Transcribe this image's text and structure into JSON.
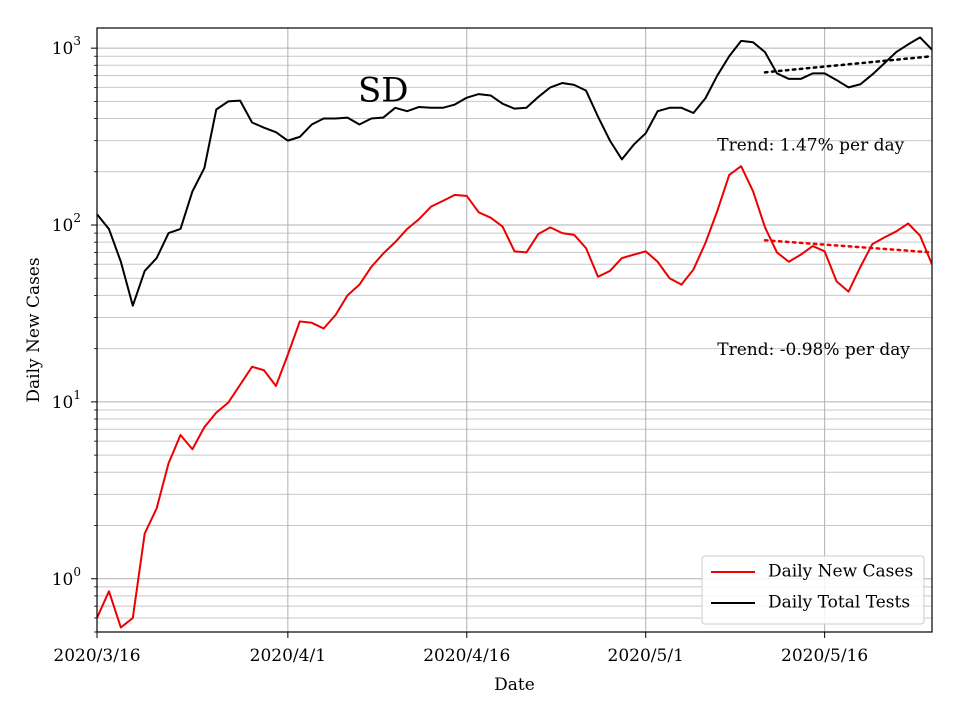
{
  "chart_data": {
    "type": "line",
    "title": "SD",
    "xlabel": "Date",
    "ylabel": "Daily New Cases",
    "yscale": "log",
    "ylim": [
      0.5,
      1300
    ],
    "xlim": [
      "2020-03-16",
      "2020-05-25"
    ],
    "grid": "major and minor (y), major (x)",
    "legend_position": "lower-right",
    "x_ticks": [
      {
        "date": "2020-03-16",
        "label": "2020/3/16"
      },
      {
        "date": "2020-04-01",
        "label": "2020/4/1"
      },
      {
        "date": "2020-04-16",
        "label": "2020/4/16"
      },
      {
        "date": "2020-05-01",
        "label": "2020/5/1"
      },
      {
        "date": "2020-05-16",
        "label": "2020/5/16"
      }
    ],
    "y_ticks": [
      {
        "value": 1,
        "base": "10",
        "exp": "0"
      },
      {
        "value": 10,
        "base": "10",
        "exp": "1"
      },
      {
        "value": 100,
        "base": "10",
        "exp": "2"
      },
      {
        "value": 1000,
        "base": "10",
        "exp": "3"
      }
    ],
    "x": [
      "2020-03-16",
      "2020-03-17",
      "2020-03-18",
      "2020-03-19",
      "2020-03-20",
      "2020-03-21",
      "2020-03-22",
      "2020-03-23",
      "2020-03-24",
      "2020-03-25",
      "2020-03-26",
      "2020-03-27",
      "2020-03-28",
      "2020-03-29",
      "2020-03-30",
      "2020-03-31",
      "2020-04-01",
      "2020-04-02",
      "2020-04-03",
      "2020-04-04",
      "2020-04-05",
      "2020-04-06",
      "2020-04-07",
      "2020-04-08",
      "2020-04-09",
      "2020-04-10",
      "2020-04-11",
      "2020-04-12",
      "2020-04-13",
      "2020-04-14",
      "2020-04-15",
      "2020-04-16",
      "2020-04-17",
      "2020-04-18",
      "2020-04-19",
      "2020-04-20",
      "2020-04-21",
      "2020-04-22",
      "2020-04-23",
      "2020-04-24",
      "2020-04-25",
      "2020-04-26",
      "2020-04-27",
      "2020-04-28",
      "2020-04-29",
      "2020-04-30",
      "2020-05-01",
      "2020-05-02",
      "2020-05-03",
      "2020-05-04",
      "2020-05-05",
      "2020-05-06",
      "2020-05-07",
      "2020-05-08",
      "2020-05-09",
      "2020-05-10",
      "2020-05-11",
      "2020-05-12",
      "2020-05-13",
      "2020-05-14",
      "2020-05-15",
      "2020-05-16",
      "2020-05-17",
      "2020-05-18",
      "2020-05-19",
      "2020-05-20",
      "2020-05-21",
      "2020-05-22",
      "2020-05-23",
      "2020-05-24",
      "2020-05-25"
    ],
    "series": [
      {
        "name": "Daily New Cases",
        "color": "#ee0000",
        "values": [
          0.6,
          0.85,
          0.53,
          0.6,
          1.8,
          2.5,
          4.5,
          6.5,
          5.4,
          7.2,
          8.7,
          9.9,
          12.5,
          15.8,
          15.1,
          12.3,
          18.5,
          28.5,
          28,
          26,
          31,
          40,
          46,
          58,
          69,
          80,
          95,
          108,
          127,
          137,
          148,
          146,
          118,
          110,
          98,
          71,
          70,
          89,
          97,
          90,
          88,
          74,
          51,
          55,
          65,
          68,
          71,
          62,
          50,
          46,
          56,
          79,
          120,
          192,
          215,
          155,
          97,
          70,
          62,
          68,
          76,
          71,
          48,
          42,
          58,
          78,
          85,
          92,
          102,
          87,
          60
        ]
      },
      {
        "name": "Daily Total Tests",
        "color": "#000000",
        "values": [
          115,
          95,
          62,
          35,
          55,
          65,
          90,
          95,
          155,
          210,
          450,
          500,
          505,
          380,
          355,
          335,
          300,
          315,
          370,
          400,
          400,
          405,
          370,
          400,
          405,
          460,
          440,
          465,
          460,
          460,
          480,
          525,
          550,
          540,
          485,
          455,
          460,
          530,
          600,
          635,
          620,
          575,
          410,
          300,
          235,
          285,
          330,
          440,
          460,
          460,
          430,
          520,
          700,
          900,
          1100,
          1080,
          950,
          720,
          670,
          670,
          720,
          720,
          660,
          600,
          625,
          710,
          820,
          950,
          1050,
          1150,
          980
        ]
      }
    ],
    "trend_lines": [
      {
        "series": "Daily Total Tests",
        "x_start": "2020-05-11",
        "y_start": 730,
        "x_end": "2020-05-25",
        "y_end": 900,
        "color": "#000000",
        "style": "dotted"
      },
      {
        "series": "Daily New Cases",
        "x_start": "2020-05-11",
        "y_start": 82,
        "x_end": "2020-05-25",
        "y_end": 70,
        "color": "#ee0000",
        "style": "dotted"
      }
    ],
    "annotations": [
      {
        "text": "Trend: 1.47% per day",
        "x": "2020-05-07",
        "y": 280
      },
      {
        "text": "Trend: -0.98% per day",
        "x": "2020-05-07",
        "y": 19.5
      }
    ],
    "title_position": {
      "x": "2020-04-09",
      "y": 560
    }
  }
}
